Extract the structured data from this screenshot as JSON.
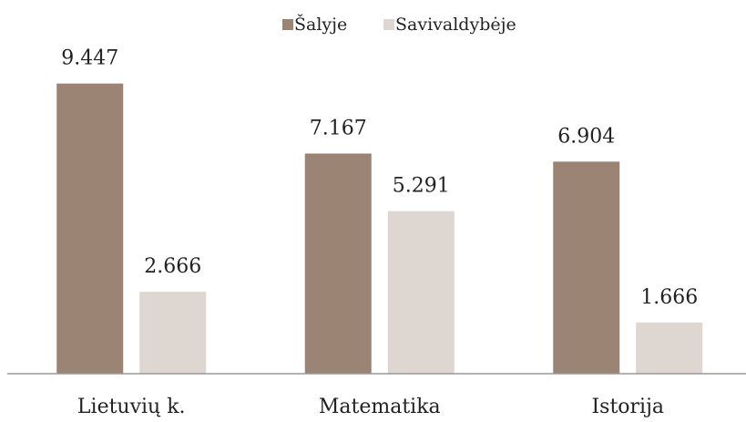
{
  "chart_data": {
    "type": "bar",
    "categories": [
      "Lietuvių k.",
      "Matematika",
      "Istorija"
    ],
    "series": [
      {
        "name": "Šalyje",
        "color": "#9c8475",
        "values": [
          9.447,
          7.167,
          6.904
        ]
      },
      {
        "name": "Savivaldybėje",
        "color": "#ddd6d1",
        "values": [
          2.666,
          5.291,
          1.666
        ]
      }
    ],
    "ylim": [
      0,
      10
    ],
    "legend": "top"
  }
}
